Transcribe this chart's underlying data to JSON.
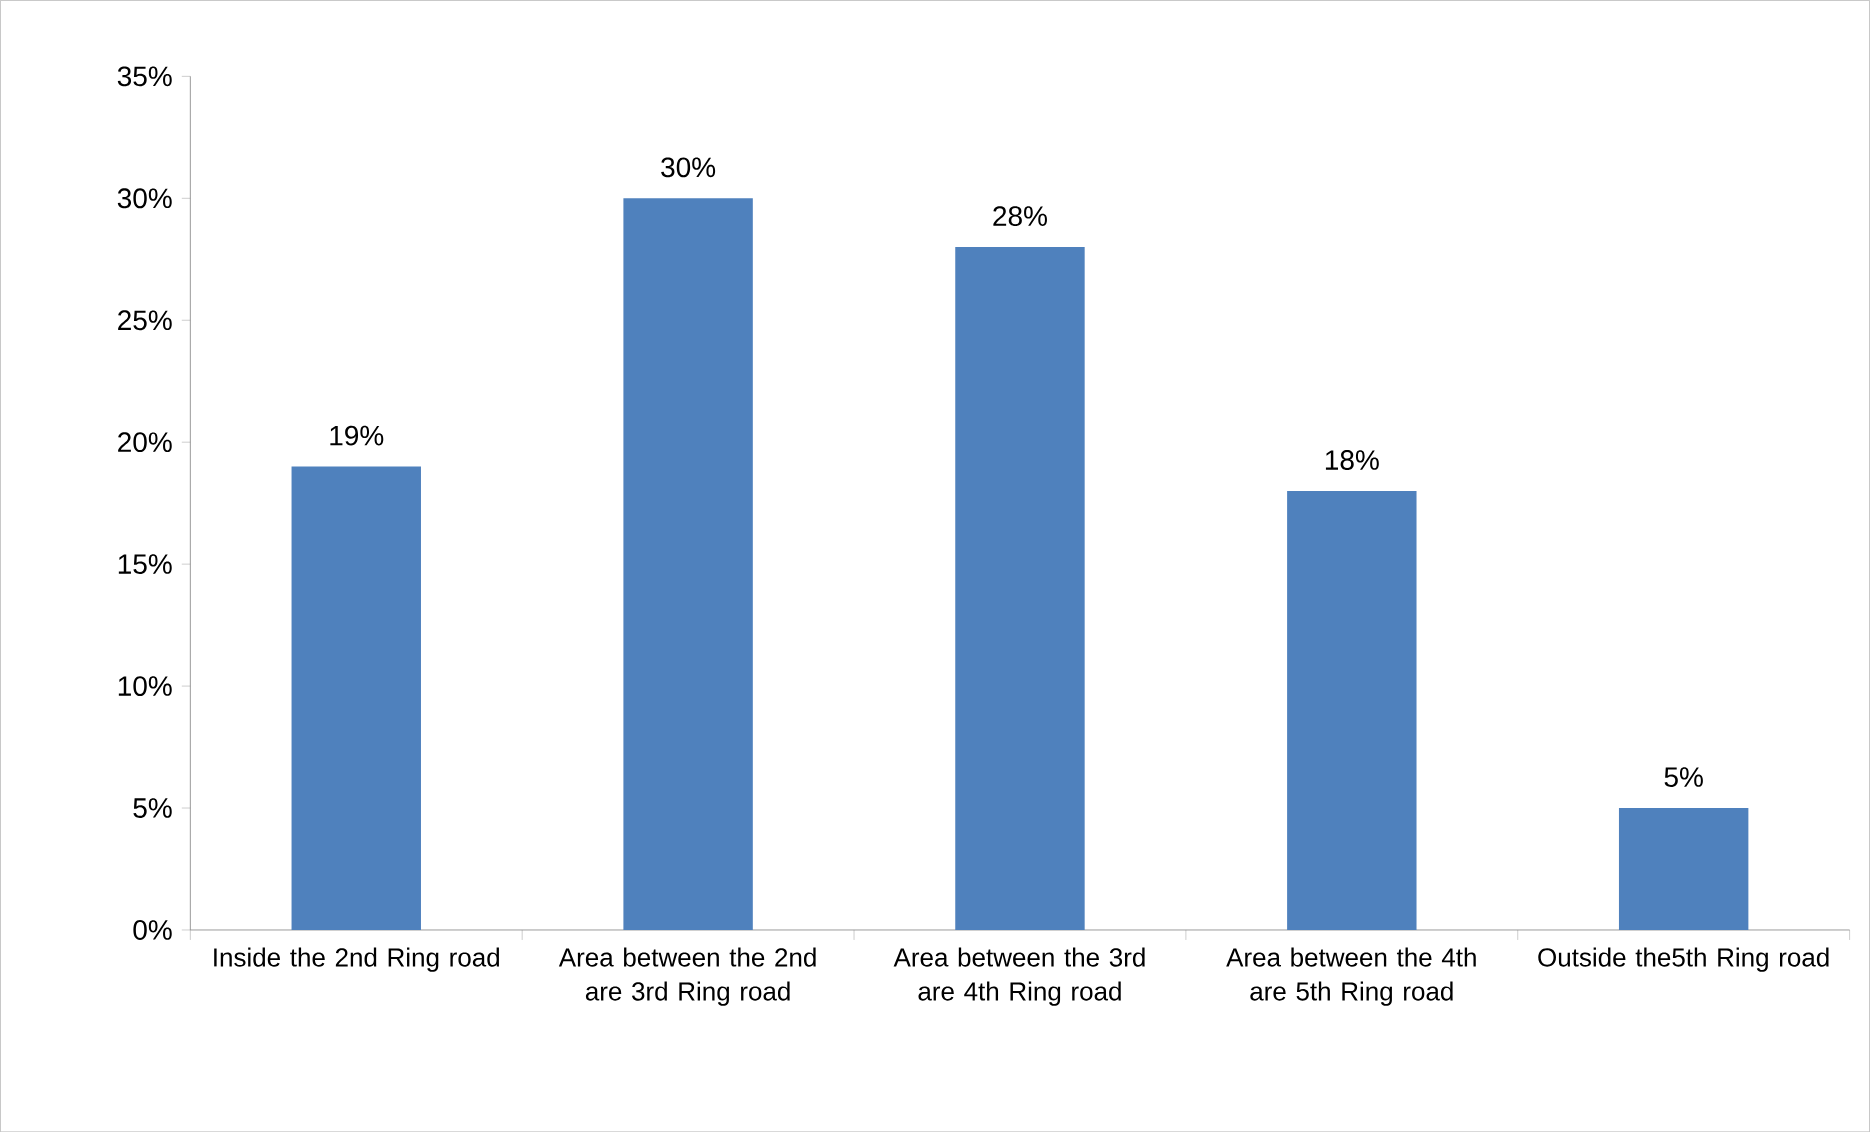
{
  "chart_data": {
    "type": "bar",
    "categories": [
      "Inside the 2nd Ring road",
      "Area between the 2nd are 3rd Ring road",
      "Area between the 3rd are 4th Ring road",
      "Area between the 4th are 5th Ring road",
      "Outside the5th Ring road"
    ],
    "values": [
      19,
      30,
      28,
      18,
      5
    ],
    "value_labels": [
      "19%",
      "30%",
      "28%",
      "18%",
      "5%"
    ],
    "color": "#4f81bd",
    "ylim": [
      0,
      35
    ],
    "yticks": [
      {
        "value": 0,
        "label": "0%"
      },
      {
        "value": 5,
        "label": "5%"
      },
      {
        "value": 10,
        "label": "10%"
      },
      {
        "value": 15,
        "label": "15%"
      },
      {
        "value": 20,
        "label": "20%"
      },
      {
        "value": 25,
        "label": "25%"
      },
      {
        "value": 30,
        "label": "30%"
      },
      {
        "value": 35,
        "label": "35%"
      }
    ]
  }
}
